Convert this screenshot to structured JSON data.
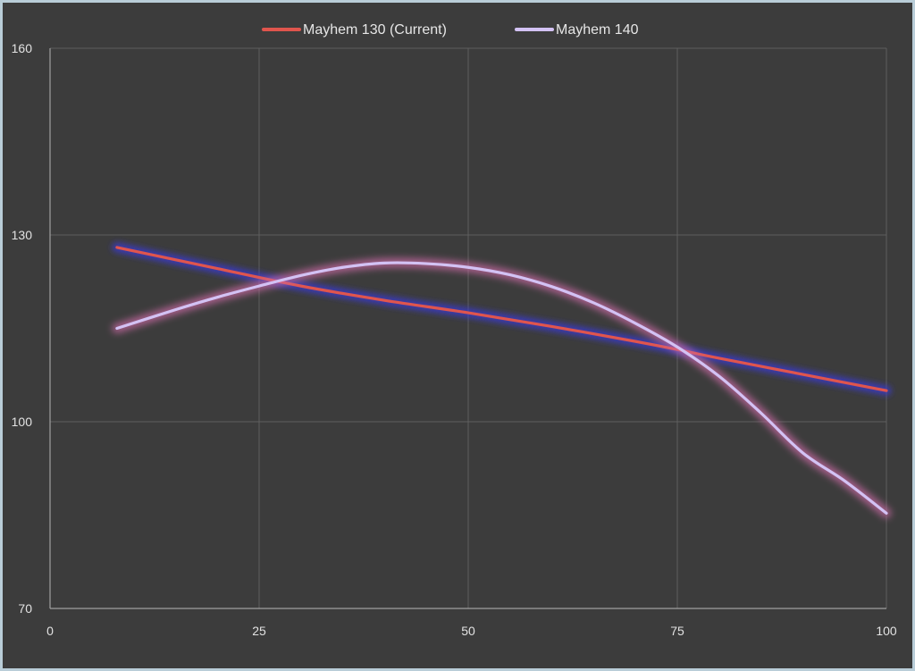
{
  "chart_data": {
    "type": "line",
    "title": "",
    "xlabel": "",
    "ylabel": "",
    "xlim": [
      0,
      100
    ],
    "ylim": [
      70,
      160
    ],
    "xticks": [
      0,
      25,
      50,
      75,
      100
    ],
    "yticks": [
      70,
      100,
      130,
      160
    ],
    "grid": true,
    "legend_position": "top",
    "series": [
      {
        "name": "Mayhem 130 (Current)",
        "color": "#e0554d",
        "glow": "#3a3ad8",
        "x": [
          8,
          20,
          30,
          40,
          50,
          60,
          70,
          75,
          80,
          90,
          100
        ],
        "y": [
          128,
          124.6,
          121.8,
          119.5,
          117.5,
          115.3,
          112.9,
          111.6,
          110.2,
          107.6,
          105
        ]
      },
      {
        "name": "Mayhem 140",
        "color": "#d3c2f4",
        "glow": "#c86aa3",
        "x": [
          8,
          15,
          20,
          25,
          30,
          35,
          40,
          45,
          50,
          55,
          60,
          65,
          70,
          75,
          80,
          85,
          90,
          95,
          100
        ],
        "y": [
          115,
          118,
          120,
          121.8,
          123.5,
          124.8,
          125.5,
          125.4,
          124.8,
          123.6,
          121.7,
          119.1,
          115.8,
          112,
          107.3,
          101.4,
          95,
          90.5,
          85.3
        ]
      }
    ]
  }
}
